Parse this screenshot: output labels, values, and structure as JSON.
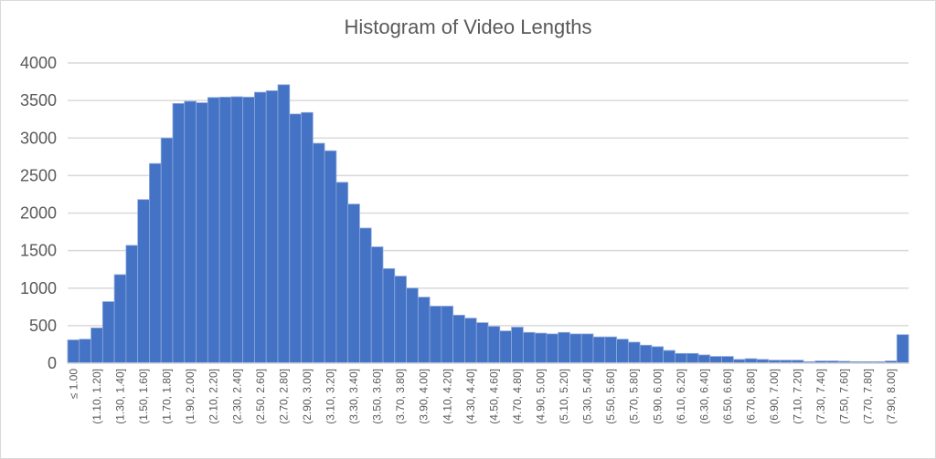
{
  "chart_data": {
    "type": "bar",
    "title": "Histogram of Video Lengths",
    "xlabel": "",
    "ylabel": "",
    "ylim": [
      0,
      4000
    ],
    "yticks": [
      0,
      500,
      1000,
      1500,
      2000,
      2500,
      3000,
      3500,
      4000
    ],
    "grid": true,
    "bar_color": "#4472c4",
    "tick_labels": [
      "≤ 1.00",
      "(1.10, 1.20]",
      "(1.30, 1.40]",
      "(1.50, 1.60]",
      "(1.70, 1.80]",
      "(1.90, 2.00]",
      "(2.10, 2.20]",
      "(2.30, 2.40]",
      "(2.50, 2.60]",
      "(2.70, 2.80]",
      "(2.90, 3.00]",
      "(3.10, 3.20]",
      "(3.30, 3.40]",
      "(3.50, 3.60]",
      "(3.70, 3.80]",
      "(3.90, 4.00]",
      "(4.10, 4.20]",
      "(4.30, 4.40]",
      "(4.50, 4.60]",
      "(4.70, 4.80]",
      "(4.90, 5.00]",
      "(5.10, 5.20]",
      "(5.30, 5.40]",
      "(5.50, 5.60]",
      "(5.70, 5.80]",
      "(5.90, 6.00]",
      "(6.10, 6.20]",
      "(6.30, 6.40]",
      "(6.50, 6.60]",
      "(6.70, 6.80]",
      "(6.90, 7.00]",
      "(7.10, 7.20]",
      "(7.30, 7.40]",
      "(7.50, 7.60]",
      "(7.70, 7.80]",
      "(7.90, 8.00]"
    ],
    "values": [
      310,
      320,
      470,
      820,
      1180,
      1570,
      2180,
      2660,
      3000,
      3460,
      3490,
      3470,
      3540,
      3545,
      3550,
      3545,
      3610,
      3630,
      3710,
      3320,
      3340,
      2930,
      2830,
      2410,
      2120,
      1800,
      1550,
      1260,
      1160,
      1000,
      880,
      760,
      760,
      640,
      600,
      540,
      490,
      430,
      480,
      410,
      400,
      390,
      410,
      390,
      390,
      350,
      350,
      320,
      280,
      240,
      220,
      170,
      130,
      130,
      110,
      90,
      90,
      50,
      60,
      50,
      40,
      40,
      40,
      20,
      30,
      30,
      25,
      20,
      20,
      20,
      30,
      380
    ]
  }
}
